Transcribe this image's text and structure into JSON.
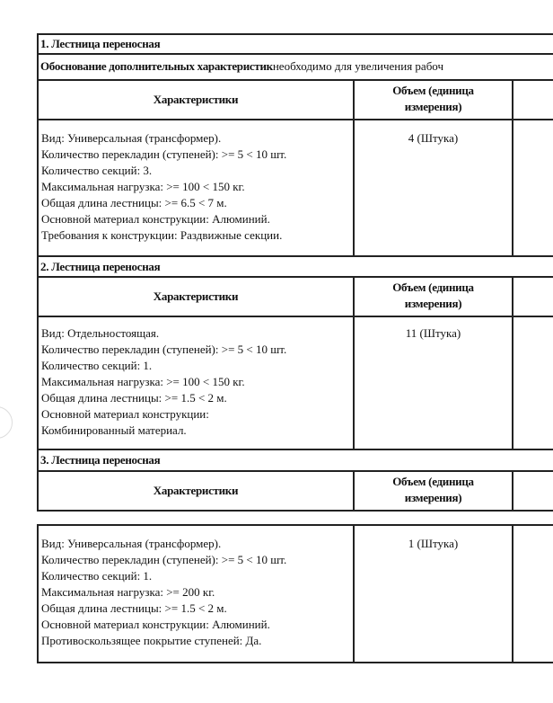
{
  "sections": [
    {
      "title": "1. Лестница переносная",
      "justification_label": "Обоснование дополнительных характеристик",
      "justification_text": "необходимо для увеличения рабоч",
      "col_characteristics": "Характеристики",
      "col_volume_line1": "Объем (единица",
      "col_volume_line2": "измерения)",
      "lines": [
        "Вид: Универсальная (трансформер).",
        "Количество перекладин (ступеней): >= 5 < 10 шт.",
        "Количество секций: 3.",
        "Максимальная нагрузка: >= 100 < 150 кг.",
        "Общая длина лестницы: >= 6.5 < 7 м.",
        "Основной материал конструкции: Алюминий.",
        "Требования к конструкции: Раздвижные секции."
      ],
      "volume": "4 (Штука)"
    },
    {
      "title": "2. Лестница переносная",
      "col_characteristics": "Характеристики",
      "col_volume_line1": "Объем (единица",
      "col_volume_line2": "измерения)",
      "lines": [
        "Вид: Отдельностоящая.",
        "Количество перекладин (ступеней): >= 5 < 10 шт.",
        "Количество секций: 1.",
        "Максимальная нагрузка: >= 100 < 150 кг.",
        "Общая длина лестницы: >= 1.5 < 2 м.",
        "Основной материал конструкции:",
        "Комбинированный материал."
      ],
      "volume": "11 (Штука)"
    },
    {
      "title": "3. Лестница переносная",
      "col_characteristics": "Характеристики",
      "col_volume_line1": "Объем (единица",
      "col_volume_line2": "измерения)",
      "lines": [
        "Вид: Универсальная (трансформер).",
        "Количество перекладин (ступеней): >= 5 < 10 шт.",
        "Количество секций: 1.",
        "Максимальная нагрузка: >= 200 кг.",
        "Общая длина лестницы: >= 1.5 < 2 м.",
        "Основной материал конструкции: Алюминий.",
        "Противоскользящее покрытие ступеней: Да."
      ],
      "volume": "1 (Штука)"
    }
  ]
}
